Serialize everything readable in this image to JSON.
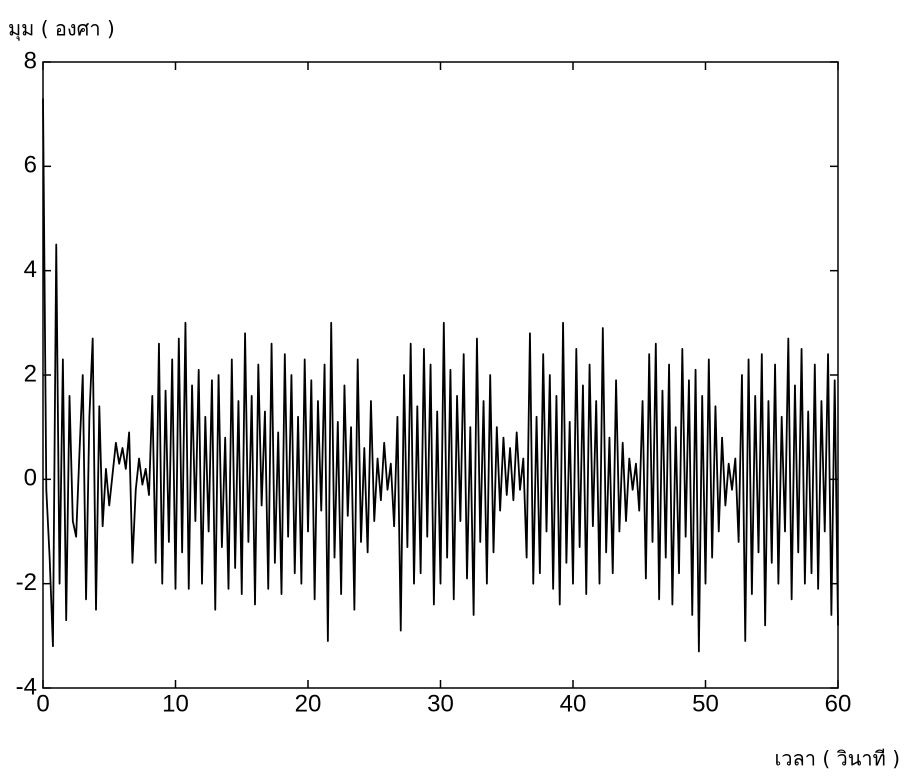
{
  "chart_data": {
    "type": "line",
    "y_label": "มุม ( องศา )",
    "x_label": "เวลา ( วินาที )",
    "color": "#000000",
    "xlim": [
      0,
      60
    ],
    "xticks": [
      0,
      10,
      20,
      30,
      40,
      50,
      60
    ],
    "ylim": [
      -4,
      8
    ],
    "yticks": [
      -4,
      -2,
      0,
      2,
      4,
      6,
      8
    ],
    "x": [
      0,
      0.25,
      0.5,
      0.75,
      1,
      1.25,
      1.5,
      1.75,
      2,
      2.25,
      2.5,
      2.75,
      3,
      3.25,
      3.5,
      3.75,
      4,
      4.25,
      4.5,
      4.75,
      5,
      5.25,
      5.5,
      5.75,
      6,
      6.25,
      6.5,
      6.75,
      7,
      7.25,
      7.5,
      7.75,
      8,
      8.25,
      8.5,
      8.75,
      9,
      9.25,
      9.5,
      9.75,
      10,
      10.25,
      10.5,
      10.75,
      11,
      11.25,
      11.5,
      11.75,
      12,
      12.25,
      12.5,
      12.75,
      13,
      13.25,
      13.5,
      13.75,
      14,
      14.25,
      14.5,
      14.75,
      15,
      15.25,
      15.5,
      15.75,
      16,
      16.25,
      16.5,
      16.75,
      17,
      17.25,
      17.5,
      17.75,
      18,
      18.25,
      18.5,
      18.75,
      19,
      19.25,
      19.5,
      19.75,
      20,
      20.25,
      20.5,
      20.75,
      21,
      21.25,
      21.5,
      21.75,
      22,
      22.25,
      22.5,
      22.75,
      23,
      23.25,
      23.5,
      23.75,
      24,
      24.25,
      24.5,
      24.75,
      25,
      25.25,
      25.5,
      25.75,
      26,
      26.25,
      26.5,
      26.75,
      27,
      27.25,
      27.5,
      27.75,
      28,
      28.25,
      28.5,
      28.75,
      29,
      29.25,
      29.5,
      29.75,
      30,
      30.25,
      30.5,
      30.75,
      31,
      31.25,
      31.5,
      31.75,
      32,
      32.25,
      32.5,
      32.75,
      33,
      33.25,
      33.5,
      33.75,
      34,
      34.25,
      34.5,
      34.75,
      35,
      35.25,
      35.5,
      35.75,
      36,
      36.25,
      36.5,
      36.75,
      37,
      37.25,
      37.5,
      37.75,
      38,
      38.25,
      38.5,
      38.75,
      39,
      39.25,
      39.5,
      39.75,
      40,
      40.25,
      40.5,
      40.75,
      41,
      41.25,
      41.5,
      41.75,
      42,
      42.25,
      42.5,
      42.75,
      43,
      43.25,
      43.5,
      43.75,
      44,
      44.25,
      44.5,
      44.75,
      45,
      45.25,
      45.5,
      45.75,
      46,
      46.25,
      46.5,
      46.75,
      47,
      47.25,
      47.5,
      47.75,
      48,
      48.25,
      48.5,
      48.75,
      49,
      49.25,
      49.5,
      49.75,
      50,
      50.25,
      50.5,
      50.75,
      51,
      51.25,
      51.5,
      51.75,
      52,
      52.25,
      52.5,
      52.75,
      53,
      53.25,
      53.5,
      53.75,
      54,
      54.25,
      54.5,
      54.75,
      55,
      55.25,
      55.5,
      55.75,
      56,
      56.25,
      56.5,
      56.75,
      57,
      57.25,
      57.5,
      57.75,
      58,
      58.25,
      58.5,
      58.75,
      59,
      59.25,
      59.5,
      59.75,
      60
    ],
    "values": [
      7.3,
      -0.2,
      -1.5,
      -3.2,
      4.5,
      -2.0,
      2.3,
      -2.7,
      1.6,
      -0.8,
      -1.1,
      0.5,
      2.0,
      -2.3,
      1.2,
      2.7,
      -2.5,
      1.4,
      -0.9,
      0.2,
      -0.5,
      0.1,
      0.7,
      0.3,
      0.6,
      0.2,
      0.9,
      -1.6,
      -0.2,
      0.4,
      -0.1,
      0.2,
      -0.3,
      1.6,
      -1.6,
      2.6,
      -2.0,
      1.7,
      -1.2,
      2.3,
      -2.1,
      2.7,
      -1.4,
      3.0,
      -2.1,
      1.8,
      -0.8,
      2.1,
      -2.0,
      1.2,
      -1.0,
      1.9,
      -2.5,
      2.0,
      -1.3,
      0.8,
      -2.1,
      2.3,
      -1.7,
      1.5,
      -2.2,
      2.8,
      -1.2,
      1.6,
      -2.4,
      2.2,
      -0.5,
      1.3,
      -2.1,
      2.6,
      -1.6,
      0.9,
      -2.2,
      2.4,
      -1.1,
      2.0,
      -1.8,
      1.2,
      -2.0,
      2.3,
      -1.0,
      1.9,
      -2.3,
      1.5,
      -0.6,
      2.2,
      -3.1,
      3.0,
      -1.5,
      1.1,
      -2.2,
      1.8,
      -0.7,
      1.0,
      -2.5,
      2.3,
      -1.2,
      0.6,
      -1.4,
      1.5,
      -0.8,
      0.4,
      -0.4,
      0.7,
      -0.2,
      0.3,
      -0.9,
      1.2,
      -2.9,
      2.0,
      -1.3,
      2.6,
      -2.0,
      1.4,
      -1.8,
      2.5,
      -1.1,
      2.2,
      -2.4,
      1.3,
      -2.0,
      3.0,
      -1.5,
      2.1,
      -2.3,
      1.6,
      -0.8,
      2.4,
      -1.9,
      1.0,
      -2.6,
      2.7,
      -1.2,
      1.5,
      -2.0,
      2.0,
      -1.4,
      1.0,
      -0.6,
      0.8,
      -0.3,
      0.6,
      -0.4,
      0.9,
      -0.2,
      0.4,
      -1.5,
      2.8,
      -2.0,
      1.2,
      -1.8,
      2.4,
      -1.0,
      2.0,
      -2.1,
      1.6,
      -2.4,
      3.0,
      -1.6,
      1.1,
      -2.0,
      2.5,
      -1.3,
      1.8,
      -2.2,
      2.2,
      -0.9,
      1.5,
      -2.0,
      2.9,
      -1.4,
      0.8,
      -1.8,
      1.9,
      -1.0,
      0.7,
      -0.8,
      0.4,
      -0.2,
      0.3,
      -0.6,
      1.5,
      -1.9,
      2.4,
      -1.2,
      2.6,
      -2.3,
      1.7,
      -1.5,
      2.2,
      -2.4,
      1.0,
      -1.8,
      2.5,
      -1.1,
      1.9,
      -2.6,
      2.1,
      -3.3,
      1.6,
      -2.0,
      2.3,
      -1.5,
      1.4,
      -1.0,
      0.8,
      -0.5,
      0.3,
      -0.2,
      0.4,
      -1.2,
      2.0,
      -3.1,
      2.3,
      -2.2,
      1.6,
      -1.4,
      2.4,
      -2.8,
      1.5,
      -1.6,
      2.2,
      -2.0,
      1.2,
      -1.0,
      2.7,
      -2.3,
      1.8,
      -1.4,
      2.5,
      -2.0,
      1.3,
      -1.8,
      2.2,
      -2.1,
      1.5,
      -1.0,
      2.4,
      -2.6,
      1.9,
      -2.8
    ]
  }
}
